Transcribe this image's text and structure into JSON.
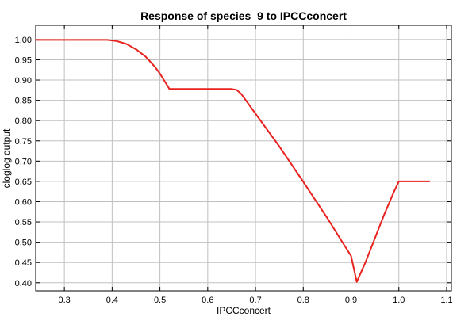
{
  "chart_data": {
    "type": "line",
    "title": "Response of species_9 to IPCCconcert",
    "xlabel": "IPCCconcert",
    "ylabel": "cloglog output",
    "xlim": [
      0.24,
      1.11
    ],
    "ylim": [
      0.38,
      1.035
    ],
    "grid": true,
    "xticks": [
      0.3,
      0.4,
      0.5,
      0.6,
      0.7,
      0.8,
      0.9,
      1.0,
      1.1
    ],
    "xtick_labels": [
      "0.3",
      "0.4",
      "0.5",
      "0.6",
      "0.7",
      "0.8",
      "0.9",
      "1.0",
      "1.1"
    ],
    "yticks": [
      0.4,
      0.45,
      0.5,
      0.55,
      0.6,
      0.65,
      0.7,
      0.75,
      0.8,
      0.85,
      0.9,
      0.95,
      1.0
    ],
    "ytick_labels": [
      "0.40",
      "0.45",
      "0.50",
      "0.55",
      "0.60",
      "0.65",
      "0.70",
      "0.75",
      "0.80",
      "0.85",
      "0.90",
      "0.95",
      "1.00"
    ],
    "series": [
      {
        "color": "#e8221f",
        "x": [
          0.24,
          0.3,
          0.35,
          0.39,
          0.41,
          0.43,
          0.45,
          0.47,
          0.49,
          0.5,
          0.51,
          0.52,
          0.55,
          0.6,
          0.65,
          0.66,
          0.67,
          0.7,
          0.75,
          0.8,
          0.85,
          0.9,
          0.912,
          0.93,
          0.95,
          0.97,
          0.99,
          1.0,
          1.064
        ],
        "y": [
          0.999,
          0.999,
          0.999,
          0.999,
          0.996,
          0.989,
          0.976,
          0.958,
          0.932,
          0.916,
          0.897,
          0.878,
          0.878,
          0.878,
          0.878,
          0.876,
          0.866,
          0.817,
          0.736,
          0.649,
          0.56,
          0.466,
          0.402,
          0.45,
          0.51,
          0.57,
          0.625,
          0.65,
          0.65
        ]
      }
    ]
  }
}
